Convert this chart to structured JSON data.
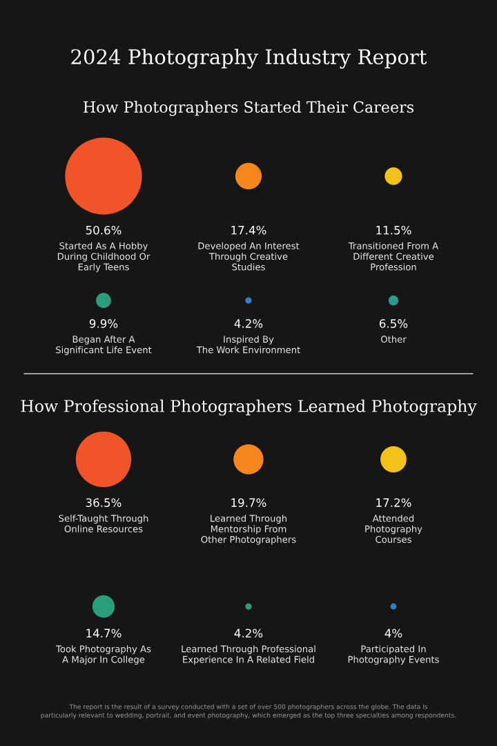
{
  "chart_data": [
    {
      "type": "other",
      "title": "2024 Photography Industry Report",
      "subtitle": "How Photographers Started Their Careers",
      "categories": [
        "Started As A Hobby\nDuring Childhood Or\nEarly Teens",
        "Developed An Interest\nThrough Creative\nStudies",
        "Transitioned From A\nDifferent Creative\nProfession",
        "Began After A\nSignificant Life Event",
        "Inspired By\nThe Work Environment",
        "Other"
      ],
      "values": [
        50.6,
        17.4,
        11.5,
        9.9,
        4.2,
        6.5
      ],
      "value_labels": [
        "50.6%",
        "17.4%",
        "11.5%",
        "9.9%",
        "4.2%",
        "6.5%"
      ],
      "colors": [
        "#f2542a",
        "#f6871f",
        "#f3c21a",
        "#2a9e7a",
        "#2f7fd0",
        "#2a9a8a"
      ]
    },
    {
      "type": "other",
      "title": "How Professional Photographers Learned Photography",
      "categories": [
        "Self-Taught Through\nOnline Resources",
        "Learned Through\nMentorship From\nOther Photographers",
        "Attended\nPhotography\nCourses",
        "Took Photography As\nA Major In College",
        "Learned Through Professional\nExperience In A Related Field",
        "Participated In\nPhotography Events"
      ],
      "values": [
        36.5,
        19.7,
        17.2,
        14.7,
        4.2,
        4.0
      ],
      "value_labels": [
        "36.5%",
        "19.7%",
        "17.2%",
        "14.7%",
        "4.2%",
        "4%"
      ],
      "colors": [
        "#f2542a",
        "#f6871f",
        "#f3c21a",
        "#2a9e7a",
        "#2a9e7a",
        "#2f7fd0"
      ],
      "annotations": [
        "The report is the result of a survey conducted with a set of over 500 photographers across the globe. The data is\nparticularly relevant to wedding, portrait, and event photography, which emerged as the top three specialties among respondents."
      ]
    }
  ]
}
